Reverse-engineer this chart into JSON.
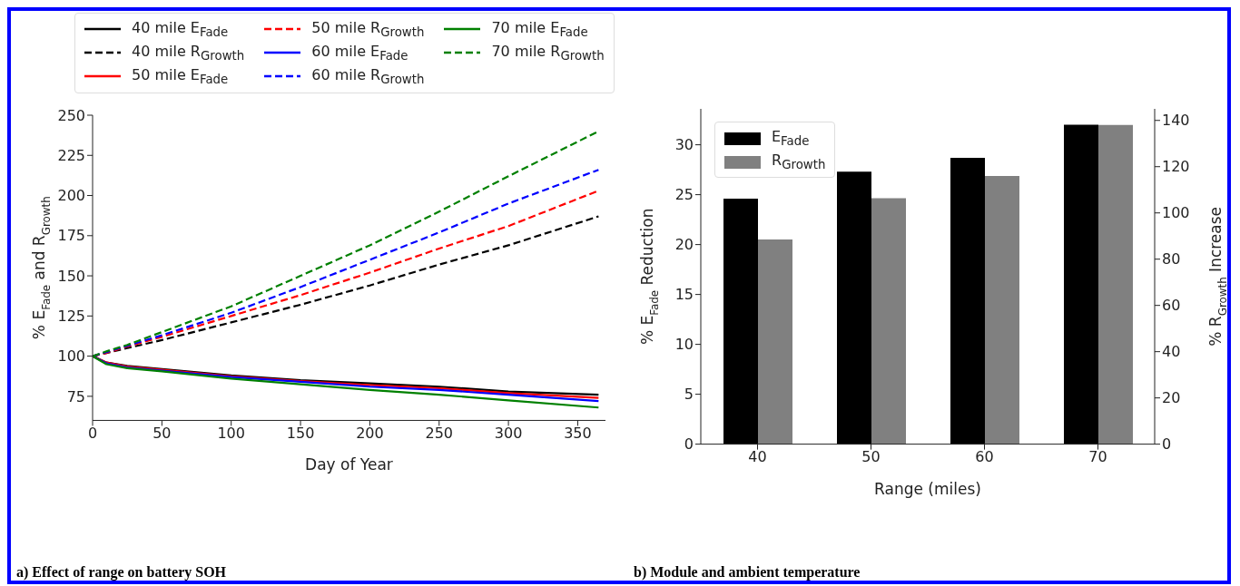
{
  "chart_data": [
    {
      "type": "line",
      "xlabel": "Day of Year",
      "ylabel": "% E$_{Fade}$ and R$_{Growth}$",
      "x": [
        0,
        10,
        25,
        50,
        100,
        150,
        200,
        250,
        300,
        365
      ],
      "xlim": [
        0,
        370
      ],
      "xticks": [
        0,
        50,
        100,
        150,
        200,
        250,
        300,
        350
      ],
      "ylim": [
        60,
        250
      ],
      "yticks": [
        75,
        100,
        125,
        150,
        175,
        200,
        225,
        250
      ],
      "legend": "top",
      "series": [
        {
          "name": "40 mile E$_{Fade}$",
          "color": "#000000",
          "line_style": "solid",
          "values": [
            100,
            96,
            94,
            92,
            88,
            85,
            83,
            81,
            78,
            76
          ]
        },
        {
          "name": "40 mile R$_{Growth}$",
          "color": "#000000",
          "line_style": "dashed",
          "values": [
            100,
            102,
            105,
            110,
            121,
            132,
            144,
            157,
            169,
            187
          ]
        },
        {
          "name": "50 mile E$_{Fade}$",
          "color": "#ff0000",
          "line_style": "solid",
          "values": [
            100,
            96,
            93.5,
            91.5,
            87.5,
            84.5,
            82,
            80,
            77,
            74
          ]
        },
        {
          "name": "50 mile R$_{Growth}$",
          "color": "#ff0000",
          "line_style": "dashed",
          "values": [
            100,
            102,
            106,
            112,
            125,
            138,
            152,
            167,
            181,
            203
          ]
        },
        {
          "name": "60 mile E$_{Fade}$",
          "color": "#0000ff",
          "line_style": "solid",
          "values": [
            100,
            95.5,
            93,
            91,
            87,
            84,
            81,
            79,
            76,
            72
          ]
        },
        {
          "name": "60 mile R$_{Growth}$",
          "color": "#0000ff",
          "line_style": "dashed",
          "values": [
            100,
            102.5,
            106.5,
            113,
            127,
            143,
            160,
            177,
            195,
            216
          ]
        },
        {
          "name": "70 mile E$_{Fade}$",
          "color": "#008000",
          "line_style": "solid",
          "values": [
            100,
            95,
            92.5,
            90.5,
            86,
            82.5,
            79,
            76,
            72.5,
            68
          ]
        },
        {
          "name": "70 mile R$_{Growth}$",
          "color": "#008000",
          "line_style": "dashed",
          "values": [
            100,
            103,
            107,
            115,
            131,
            150,
            169,
            190,
            212,
            240
          ]
        }
      ],
      "annotations": [
        "a) Effect of range on battery SOH"
      ]
    },
    {
      "type": "bar",
      "xlabel": "Range (miles)",
      "ylabel": "% E$_{Fade}$ Reduction",
      "y2label": "% R$_{Growth}$ Increase",
      "categories": [
        "40",
        "50",
        "60",
        "70"
      ],
      "ylim": [
        0,
        33.6
      ],
      "yticks": [
        0,
        5,
        10,
        15,
        20,
        25,
        30
      ],
      "y2lim": [
        0,
        145
      ],
      "y2ticks": [
        0,
        20,
        40,
        60,
        80,
        100,
        120,
        140
      ],
      "legend": "top left",
      "series": [
        {
          "name": "E$_{Fade}$",
          "color": "#000000",
          "values": [
            24.6,
            27.3,
            28.7,
            32.0
          ]
        },
        {
          "name": "R$_{Growth}$",
          "color": "#808080",
          "axis": "y2",
          "values": [
            88.5,
            106.4,
            116,
            138
          ]
        }
      ],
      "annotations": [
        "b) Module and ambient temperature"
      ]
    }
  ]
}
